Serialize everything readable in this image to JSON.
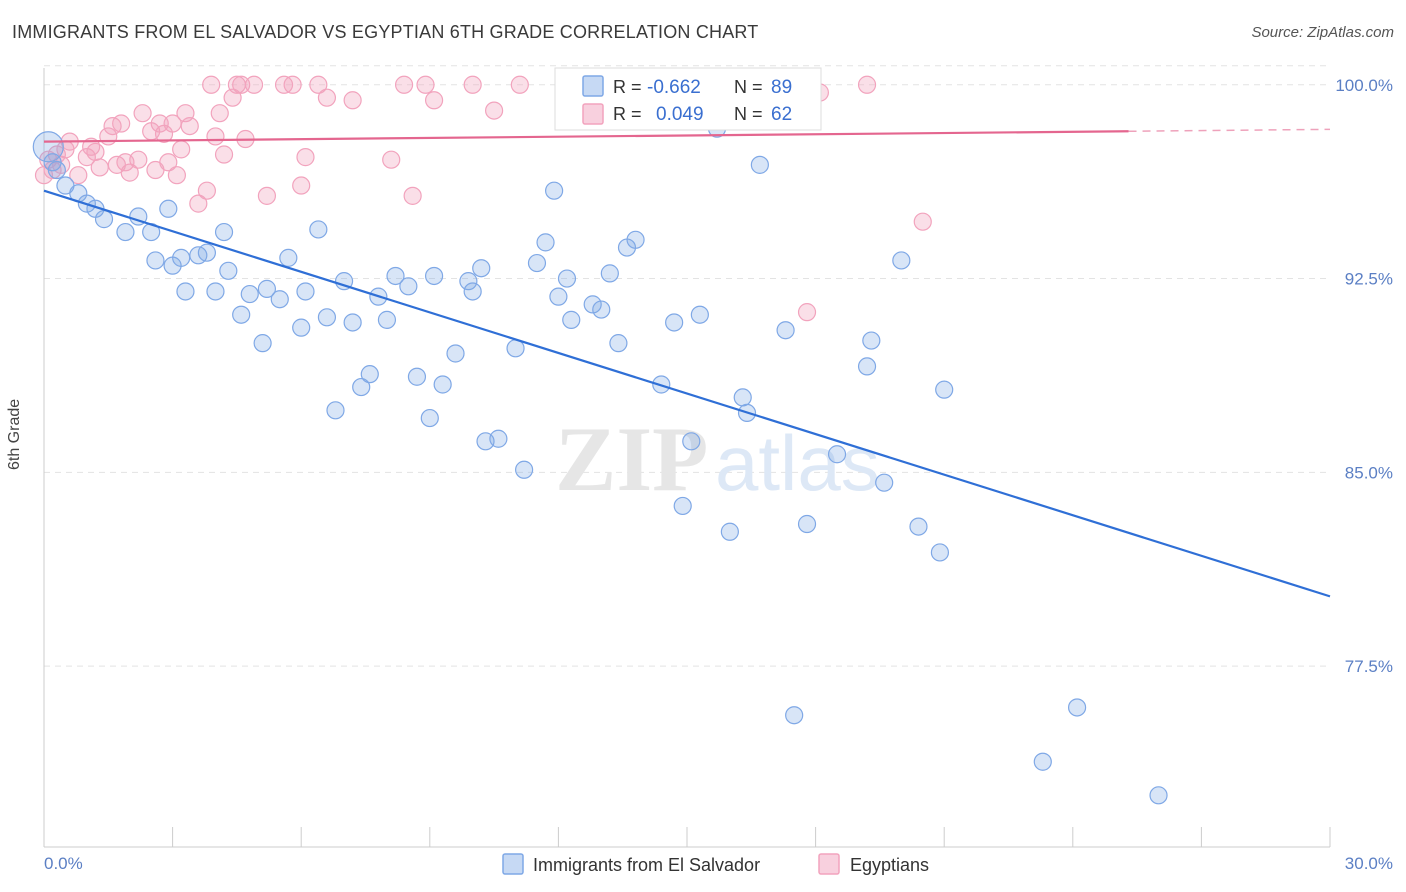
{
  "header": {
    "title": "IMMIGRANTS FROM EL SALVADOR VS EGYPTIAN 6TH GRADE CORRELATION CHART",
    "source": "Source: ZipAtlas.com"
  },
  "watermark": {
    "zip": "ZIP",
    "atlas": "atlas"
  },
  "legend": {
    "r_label": "R =",
    "n_label": "N =",
    "blue": {
      "r": "-0.662",
      "n": "89",
      "color": "#7fa8e6"
    },
    "pink": {
      "r": "0.049",
      "n": "62",
      "color": "#f2a3bd"
    }
  },
  "bottom_legend": {
    "blue_label": "Immigrants from El Salvador",
    "pink_label": "Egyptians"
  },
  "chart_data": {
    "type": "scatter",
    "title": "IMMIGRANTS FROM EL SALVADOR VS EGYPTIAN 6TH GRADE CORRELATION CHART",
    "ylabel": "6th Grade",
    "xlim": [
      0,
      30
    ],
    "ylim": [
      70.5,
      101.5
    ],
    "x_tick_labels": [
      "0.0%",
      "30.0%"
    ],
    "y_ticks": [
      77.5,
      85.0,
      92.5,
      100.0
    ],
    "y_tick_labels": [
      "77.5%",
      "85.0%",
      "92.5%",
      "100.0%"
    ],
    "grid": "horizontal dashed",
    "series": [
      {
        "name": "Immigrants from El Salvador",
        "color": "#7fa8e6",
        "line_color": "#2f6fd6",
        "trend": {
          "x": [
            0,
            30
          ],
          "y": [
            95.9,
            80.2
          ]
        },
        "points": [
          [
            0.1,
            97.6
          ],
          [
            0.3,
            96.7
          ],
          [
            0.5,
            96.1
          ],
          [
            0.8,
            95.8
          ],
          [
            1.0,
            95.4
          ],
          [
            1.2,
            95.2
          ],
          [
            1.4,
            94.8
          ],
          [
            1.9,
            94.3
          ],
          [
            2.2,
            94.9
          ],
          [
            2.5,
            94.3
          ],
          [
            2.6,
            93.2
          ],
          [
            2.9,
            95.2
          ],
          [
            3.0,
            93.0
          ],
          [
            3.2,
            93.3
          ],
          [
            3.3,
            92.0
          ],
          [
            3.6,
            93.4
          ],
          [
            3.8,
            93.5
          ],
          [
            4.0,
            92.0
          ],
          [
            4.2,
            94.3
          ],
          [
            4.3,
            92.8
          ],
          [
            4.6,
            91.1
          ],
          [
            4.8,
            91.9
          ],
          [
            5.1,
            90.0
          ],
          [
            5.2,
            92.1
          ],
          [
            5.5,
            91.7
          ],
          [
            5.7,
            93.3
          ],
          [
            6.0,
            90.6
          ],
          [
            6.1,
            92.0
          ],
          [
            6.4,
            94.4
          ],
          [
            6.6,
            91.0
          ],
          [
            6.8,
            87.4
          ],
          [
            7.0,
            92.4
          ],
          [
            7.2,
            90.8
          ],
          [
            7.4,
            88.3
          ],
          [
            7.6,
            88.8
          ],
          [
            7.8,
            91.8
          ],
          [
            8.0,
            90.9
          ],
          [
            8.2,
            92.6
          ],
          [
            8.5,
            92.2
          ],
          [
            8.7,
            88.7
          ],
          [
            9.0,
            87.1
          ],
          [
            9.1,
            92.6
          ],
          [
            9.3,
            88.4
          ],
          [
            9.6,
            89.6
          ],
          [
            9.9,
            92.4
          ],
          [
            10.0,
            92.0
          ],
          [
            10.2,
            92.9
          ],
          [
            10.3,
            86.2
          ],
          [
            10.6,
            86.3
          ],
          [
            11.0,
            89.8
          ],
          [
            11.2,
            85.1
          ],
          [
            11.5,
            93.1
          ],
          [
            11.7,
            93.9
          ],
          [
            11.9,
            95.9
          ],
          [
            12.0,
            91.8
          ],
          [
            12.2,
            92.5
          ],
          [
            12.3,
            90.9
          ],
          [
            12.8,
            91.5
          ],
          [
            13.0,
            91.3
          ],
          [
            13.2,
            92.7
          ],
          [
            13.4,
            90.0
          ],
          [
            13.6,
            93.7
          ],
          [
            13.8,
            94.0
          ],
          [
            14.4,
            88.4
          ],
          [
            14.7,
            90.8
          ],
          [
            14.9,
            83.7
          ],
          [
            15.1,
            86.2
          ],
          [
            15.3,
            91.1
          ],
          [
            15.7,
            98.3
          ],
          [
            16.0,
            82.7
          ],
          [
            16.3,
            87.9
          ],
          [
            16.4,
            87.3
          ],
          [
            16.7,
            96.9
          ],
          [
            17.3,
            90.5
          ],
          [
            17.5,
            75.6
          ],
          [
            17.8,
            83.0
          ],
          [
            18.5,
            85.7
          ],
          [
            19.2,
            89.1
          ],
          [
            19.3,
            90.1
          ],
          [
            19.6,
            84.6
          ],
          [
            20.0,
            93.2
          ],
          [
            20.4,
            82.9
          ],
          [
            20.9,
            81.9
          ],
          [
            21.0,
            88.2
          ],
          [
            23.3,
            73.8
          ],
          [
            24.1,
            75.9
          ],
          [
            26.0,
            72.5
          ],
          [
            13.0,
            100.0
          ],
          [
            0.2,
            97.0
          ]
        ]
      },
      {
        "name": "Egyptians",
        "color": "#f2a3bd",
        "line_color": "#e4668f",
        "trend": {
          "x": [
            0,
            25.3
          ],
          "y": [
            97.8,
            98.2
          ]
        },
        "points": [
          [
            0.1,
            97.1
          ],
          [
            0.2,
            96.7
          ],
          [
            0.3,
            97.3
          ],
          [
            0.4,
            96.9
          ],
          [
            0.5,
            97.5
          ],
          [
            0.6,
            97.8
          ],
          [
            0.8,
            96.5
          ],
          [
            1.0,
            97.2
          ],
          [
            1.1,
            97.6
          ],
          [
            1.2,
            97.4
          ],
          [
            1.3,
            96.8
          ],
          [
            1.5,
            98.0
          ],
          [
            1.6,
            98.4
          ],
          [
            1.7,
            96.9
          ],
          [
            1.8,
            98.5
          ],
          [
            1.9,
            97.0
          ],
          [
            2.0,
            96.6
          ],
          [
            2.2,
            97.1
          ],
          [
            2.3,
            98.9
          ],
          [
            2.5,
            98.2
          ],
          [
            2.6,
            96.7
          ],
          [
            2.7,
            98.5
          ],
          [
            2.8,
            98.1
          ],
          [
            2.9,
            97.0
          ],
          [
            3.0,
            98.5
          ],
          [
            3.1,
            96.5
          ],
          [
            3.2,
            97.5
          ],
          [
            3.3,
            98.9
          ],
          [
            3.4,
            98.4
          ],
          [
            3.6,
            95.4
          ],
          [
            3.8,
            95.9
          ],
          [
            3.9,
            100.0
          ],
          [
            4.0,
            98.0
          ],
          [
            4.1,
            98.9
          ],
          [
            4.2,
            97.3
          ],
          [
            4.4,
            99.5
          ],
          [
            4.5,
            100.0
          ],
          [
            4.6,
            100.0
          ],
          [
            4.7,
            97.9
          ],
          [
            4.9,
            100.0
          ],
          [
            5.2,
            95.7
          ],
          [
            5.6,
            100.0
          ],
          [
            5.8,
            100.0
          ],
          [
            6.0,
            96.1
          ],
          [
            6.1,
            97.2
          ],
          [
            6.4,
            100.0
          ],
          [
            6.6,
            99.5
          ],
          [
            7.2,
            99.4
          ],
          [
            8.1,
            97.1
          ],
          [
            8.4,
            100.0
          ],
          [
            8.6,
            95.7
          ],
          [
            8.9,
            100.0
          ],
          [
            9.1,
            99.4
          ],
          [
            10.0,
            100.0
          ],
          [
            10.5,
            99.0
          ],
          [
            11.1,
            100.0
          ],
          [
            17.7,
            100.0
          ],
          [
            17.8,
            91.2
          ],
          [
            18.1,
            99.7
          ],
          [
            19.2,
            100.0
          ],
          [
            20.5,
            94.7
          ],
          [
            0.0,
            96.5
          ]
        ]
      }
    ]
  }
}
